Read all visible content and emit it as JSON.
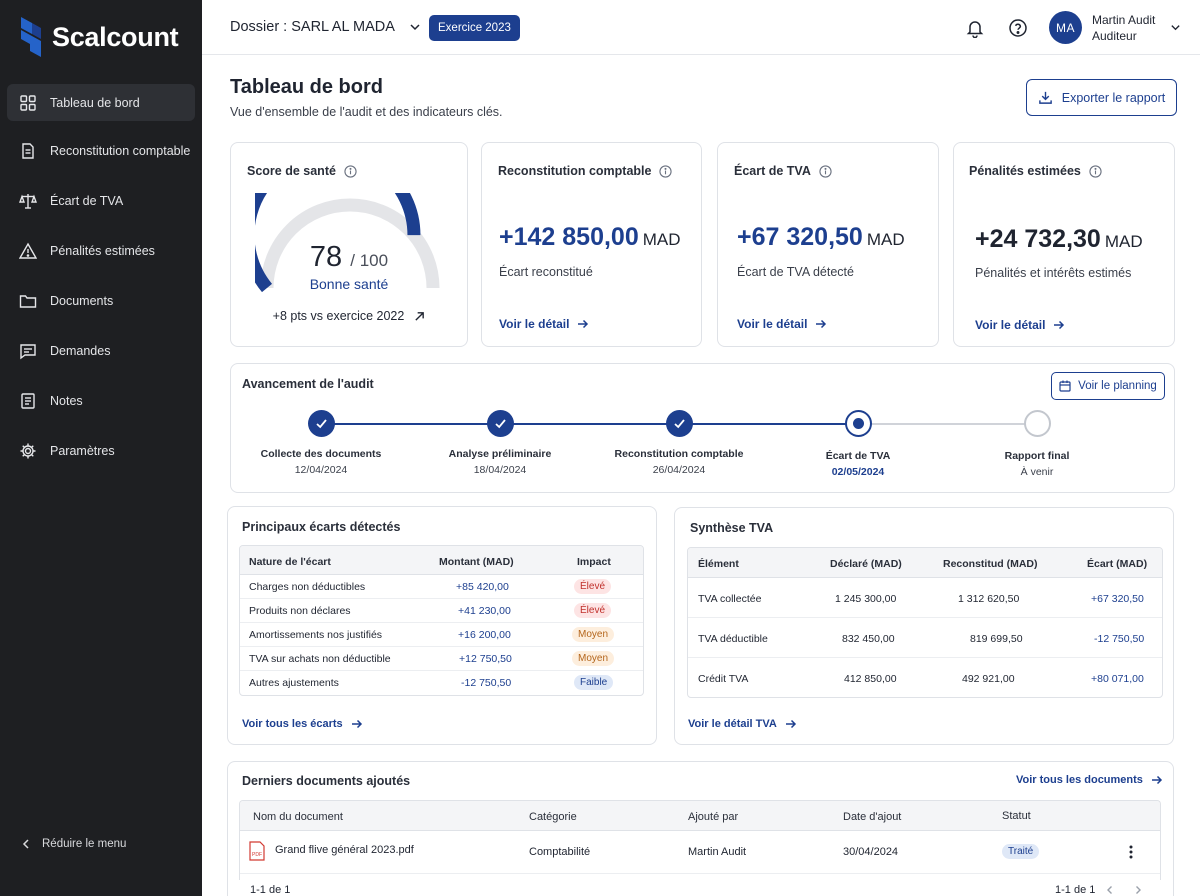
{
  "app": {
    "name": "Scalcount"
  },
  "sidebar": {
    "items": [
      {
        "label": "Tableau de bord",
        "icon": "dashboard-icon",
        "active": true
      },
      {
        "label": "Reconstitution comptable",
        "icon": "document-icon"
      },
      {
        "label": "Écart de TVA",
        "icon": "scale-icon"
      },
      {
        "label": "Pénalités estimées",
        "icon": "warning-icon"
      },
      {
        "label": "Documents",
        "icon": "folder-icon"
      },
      {
        "label": "Demandes",
        "icon": "message-icon"
      },
      {
        "label": "Notes",
        "icon": "notes-icon"
      },
      {
        "label": "Paramètres",
        "icon": "gear-icon"
      }
    ],
    "collapse_label": "Réduire le menu"
  },
  "header": {
    "dossier_label": "Dossier : SARL AL MADA",
    "exercise_label": "Exercice 2023",
    "user": {
      "initials": "MA",
      "name": "Martin Audit",
      "role": "Auditeur"
    }
  },
  "page": {
    "title": "Tableau de bord",
    "subtitle": "Vue d'ensemble de l'audit et des indicateurs clés.",
    "export_label": "Exporter le rapport"
  },
  "health": {
    "title": "Score de santé",
    "score": "78",
    "max": "/ 100",
    "score_fraction": 0.78,
    "label": "Bonne santé",
    "trend": "+8 pts vs exercice 2022"
  },
  "kpis": [
    {
      "title": "Reconstitution comptable",
      "value": "+142 850,00",
      "unit": "MAD",
      "sub": "Écart reconstitué",
      "link": "Voir le détail"
    },
    {
      "title": "Écart de TVA",
      "value": "+67 320,50",
      "unit": "MAD",
      "sub": "Écart de TVA détecté",
      "link": "Voir le détail"
    },
    {
      "title": "Pénalités estimées",
      "value": "+24 732,30",
      "unit": "MAD",
      "sub": "Pénalités et intérêts estimés",
      "link": "Voir le détail"
    }
  ],
  "progress": {
    "title": "Avancement de l'audit",
    "planning_label": "Voir le planning",
    "steps": [
      {
        "label": "Collecte des documents",
        "date": "12/04/2024",
        "state": "done"
      },
      {
        "label": "Analyse préliminaire",
        "date": "18/04/2024",
        "state": "done"
      },
      {
        "label": "Reconstitution comptable",
        "date": "26/04/2024",
        "state": "done"
      },
      {
        "label": "Écart de TVA",
        "date": "02/05/2024",
        "state": "current"
      },
      {
        "label": "Rapport final",
        "date": "À venir",
        "state": "todo"
      }
    ]
  },
  "gaps": {
    "title": "Principaux écarts détectés",
    "columns": [
      "Nature de l'écart",
      "Montant (MAD)",
      "Impact"
    ],
    "rows": [
      {
        "nature": "Charges non déductibles",
        "amount": "+85 420,00",
        "impact": "Élevé",
        "level": "high"
      },
      {
        "nature": "Produits non déclares",
        "amount": "+41 230,00",
        "impact": "Élevé",
        "level": "high"
      },
      {
        "nature": "Amortissements nos justifiés",
        "amount": "+16 200,00",
        "impact": "Moyen",
        "level": "med"
      },
      {
        "nature": "TVA sur achats non déductible",
        "amount": "+12 750,50",
        "impact": "Moyen",
        "level": "med"
      },
      {
        "nature": "Autres ajustements",
        "amount": "-12 750,50",
        "impact": "Faible",
        "level": "low"
      }
    ],
    "link": "Voir tous les écarts"
  },
  "vat": {
    "title": "Synthèse TVA",
    "columns": [
      "Élément",
      "Déclaré (MAD)",
      "Reconstitud (MAD)",
      "Écart (MAD)"
    ],
    "rows": [
      {
        "item": "TVA collectée",
        "declared": "1 245 300,00",
        "rebuilt": "1 312 620,50",
        "gap": "+67 320,50"
      },
      {
        "item": "TVA déductible",
        "declared": "832 450,00",
        "rebuilt": "819 699,50",
        "gap": "-12 750,50"
      },
      {
        "item": "Crédit TVA",
        "declared": "412 850,00",
        "rebuilt": "492 921,00",
        "gap": "+80 071,00"
      }
    ],
    "link": "Voir le détail TVA"
  },
  "documents": {
    "title": "Derniers documents ajoutés",
    "link": "Voir tous les documents",
    "columns": [
      "Nom du document",
      "Catégorie",
      "Ajouté par",
      "Date d'ajout",
      "Statut"
    ],
    "rows": [
      {
        "name": "Grand flive général 2023.pdf",
        "category": "Comptabilité",
        "added_by": "Martin Audit",
        "date": "30/04/2024",
        "status": "Traité",
        "file_tag": "PDF"
      }
    ],
    "pagination_left": "1-1 de 1",
    "pagination_right": "1-1 de 1"
  }
}
